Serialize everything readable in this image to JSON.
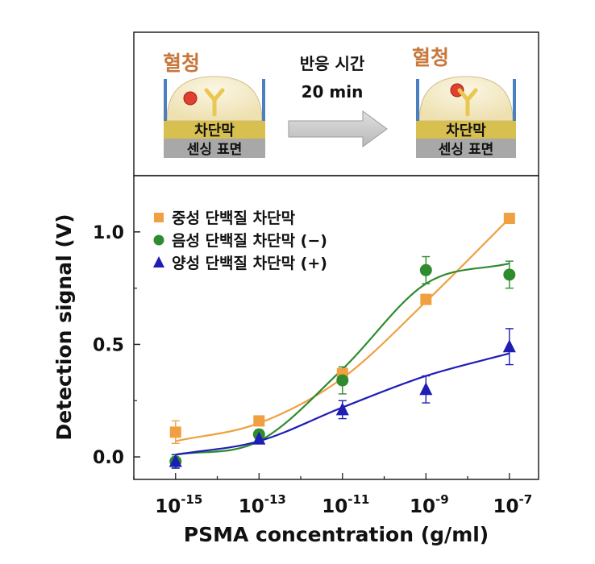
{
  "schematic": {
    "left_label": "혈청",
    "right_label": "혈청",
    "arrow_line1": "반응 시간",
    "arrow_line2": "20 min",
    "layer_barrier": "차단막",
    "layer_sensing": "센싱 표면"
  },
  "colors": {
    "neutral": "#f0a040",
    "negative": "#2e8b2e",
    "positive": "#1e1eb4",
    "serum_text": "#c8783c",
    "barrier_layer": "#d8c050",
    "sensing_layer": "#a8a8a8",
    "well_wall": "#4a7fc0",
    "arrow": "#c8c8c8"
  },
  "chart_data": {
    "type": "scatter",
    "xlabel": "PSMA concentration (g/ml)",
    "ylabel": "Detection signal (V)",
    "x_scale": "log",
    "xlim": [
      1e-16,
      5e-07
    ],
    "ylim": [
      -0.1,
      1.25
    ],
    "x_ticks": [
      1e-15,
      1e-13,
      1e-11,
      1e-09,
      1e-07
    ],
    "x_tick_labels": [
      {
        "base": "10",
        "exp": "-15"
      },
      {
        "base": "10",
        "exp": "-13"
      },
      {
        "base": "10",
        "exp": "-11"
      },
      {
        "base": "10",
        "exp": "-9"
      },
      {
        "base": "10",
        "exp": "-7"
      }
    ],
    "y_ticks": [
      0.0,
      0.5,
      1.0
    ],
    "y_tick_labels": [
      "0.0",
      "0.5",
      "1.0"
    ],
    "legend_position": "top-left",
    "series": [
      {
        "name": "중성 단백질 차단막",
        "marker": "square",
        "color": "#f0a040",
        "x": [
          1e-15,
          1e-13,
          1e-11,
          1e-09,
          1e-07
        ],
        "y": [
          0.11,
          0.16,
          0.37,
          0.7,
          1.06
        ],
        "err": [
          0.05,
          0.01,
          0.02,
          0.02,
          0.01
        ],
        "fit": [
          0.07,
          0.15,
          0.35,
          0.69,
          1.06
        ]
      },
      {
        "name": "음성 단백질 차단막 (−)",
        "marker": "circle",
        "color": "#2e8b2e",
        "x": [
          1e-15,
          1e-13,
          1e-11,
          1e-09,
          1e-07
        ],
        "y": [
          -0.02,
          0.1,
          0.34,
          0.83,
          0.81
        ],
        "err": [
          0.03,
          0.02,
          0.06,
          0.06,
          0.06
        ],
        "fit": [
          0.01,
          0.07,
          0.39,
          0.77,
          0.86
        ]
      },
      {
        "name": "양성 단백질 차단막 (+)",
        "marker": "triangle",
        "color": "#1e1eb4",
        "x": [
          1e-15,
          1e-13,
          1e-11,
          1e-09,
          1e-07
        ],
        "y": [
          -0.02,
          0.08,
          0.21,
          0.3,
          0.49
        ],
        "err": [
          0.03,
          0.01,
          0.04,
          0.06,
          0.08
        ],
        "fit": [
          0.01,
          0.07,
          0.22,
          0.36,
          0.46
        ]
      }
    ]
  }
}
